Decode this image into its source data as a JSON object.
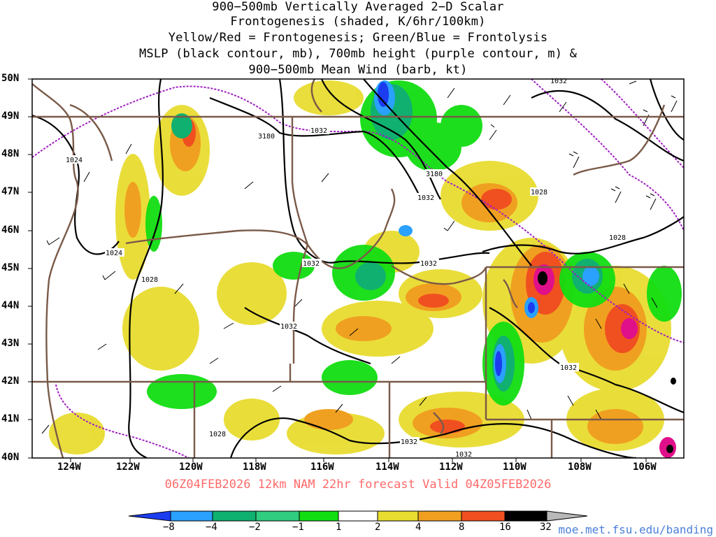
{
  "title": {
    "lines": [
      "900−500mb Vertically Averaged 2−D Scalar",
      "Frontogenesis (shaded, K/6hr/100km)",
      "Yellow/Red = Frontogenesis;  Green/Blue = Frontolysis",
      "MSLP (black contour, mb), 700mb height (purple contour, m) &",
      "900−500mb Mean Wind (barb, kt)"
    ]
  },
  "axes": {
    "lat_labels": [
      "50N",
      "49N",
      "48N",
      "47N",
      "46N",
      "45N",
      "44N",
      "43N",
      "42N",
      "41N",
      "40N"
    ],
    "lon_labels": [
      "124W",
      "122W",
      "120W",
      "118W",
      "116W",
      "114W",
      "112W",
      "110W",
      "108W",
      "106W"
    ],
    "lat_range": [
      40,
      50
    ],
    "lon_range": [
      -125.2,
      -104.9
    ]
  },
  "valid_line": "06Z04FEB2026 12km NAM 22hr forecast Valid 04Z05FEB2026",
  "colorbar": {
    "labels": [
      "−8",
      "−4",
      "−2",
      "−1",
      "1",
      "2",
      "4",
      "8",
      "16",
      "32"
    ],
    "colors": [
      "#1c3cf0",
      "#2aa0ff",
      "#10b070",
      "#30cc80",
      "#11dd11",
      "#ffffff",
      "#e8dc30",
      "#f0a020",
      "#f05020",
      "#f02060",
      "#e0108a",
      "#000000",
      "#b8b8b8"
    ]
  },
  "contour_labels": {
    "mslp": [
      "1024",
      "1024",
      "1028",
      "1028",
      "1032",
      "1032",
      "1032",
      "1032",
      "1032",
      "1032",
      "1032",
      "1032",
      "1028",
      "1028",
      "1032"
    ],
    "height": [
      "3180",
      "3180"
    ]
  },
  "map_colors": {
    "state_borders": "#7a5a48",
    "mslp": "#000000",
    "height": "#a020c0"
  },
  "credit": "moe.met.fsu.edu/banding"
}
